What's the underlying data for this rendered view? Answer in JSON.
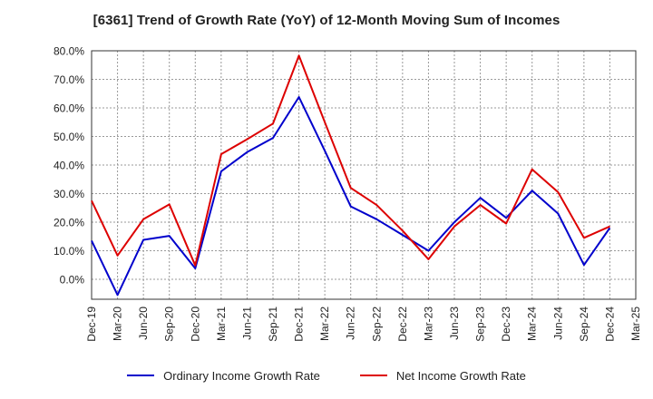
{
  "chart_data": {
    "type": "line",
    "title": "[6361]  Trend of Growth Rate (YoY) of 12-Month Moving Sum of Incomes",
    "xlabel": "",
    "ylabel": "",
    "categories": [
      "Dec-19",
      "Mar-20",
      "Jun-20",
      "Sep-20",
      "Dec-20",
      "Mar-21",
      "Jun-21",
      "Sep-21",
      "Dec-21",
      "Mar-22",
      "Jun-22",
      "Sep-22",
      "Dec-22",
      "Mar-23",
      "Jun-23",
      "Sep-23",
      "Dec-23",
      "Mar-24",
      "Jun-24",
      "Sep-24",
      "Dec-24",
      "Mar-25"
    ],
    "ylim": [
      -7,
      80
    ],
    "yticks": [
      0,
      10,
      20,
      30,
      40,
      50,
      60,
      70,
      80
    ],
    "ytick_labels": [
      "0.0%",
      "10.0%",
      "20.0%",
      "30.0%",
      "40.0%",
      "50.0%",
      "60.0%",
      "70.0%",
      "80.0%"
    ],
    "grid": true,
    "legend_position": "bottom",
    "series": [
      {
        "name": "Ordinary Income Growth Rate",
        "color": "#0000cc",
        "values": [
          13.5,
          -5.5,
          13.8,
          15.2,
          3.8,
          37.8,
          44.5,
          49.5,
          63.8,
          45.0,
          25.5,
          21.0,
          15.5,
          10.0,
          20.0,
          28.5,
          21.5,
          31.0,
          23.0,
          5.0,
          18.0,
          null
        ]
      },
      {
        "name": "Net Income Growth Rate",
        "color": "#dd0000",
        "values": [
          27.5,
          8.3,
          21.0,
          26.2,
          4.8,
          43.8,
          49.0,
          54.5,
          78.3,
          55.0,
          32.0,
          26.0,
          17.0,
          7.0,
          18.5,
          26.0,
          19.5,
          38.5,
          30.5,
          14.5,
          18.5,
          null
        ]
      }
    ]
  }
}
